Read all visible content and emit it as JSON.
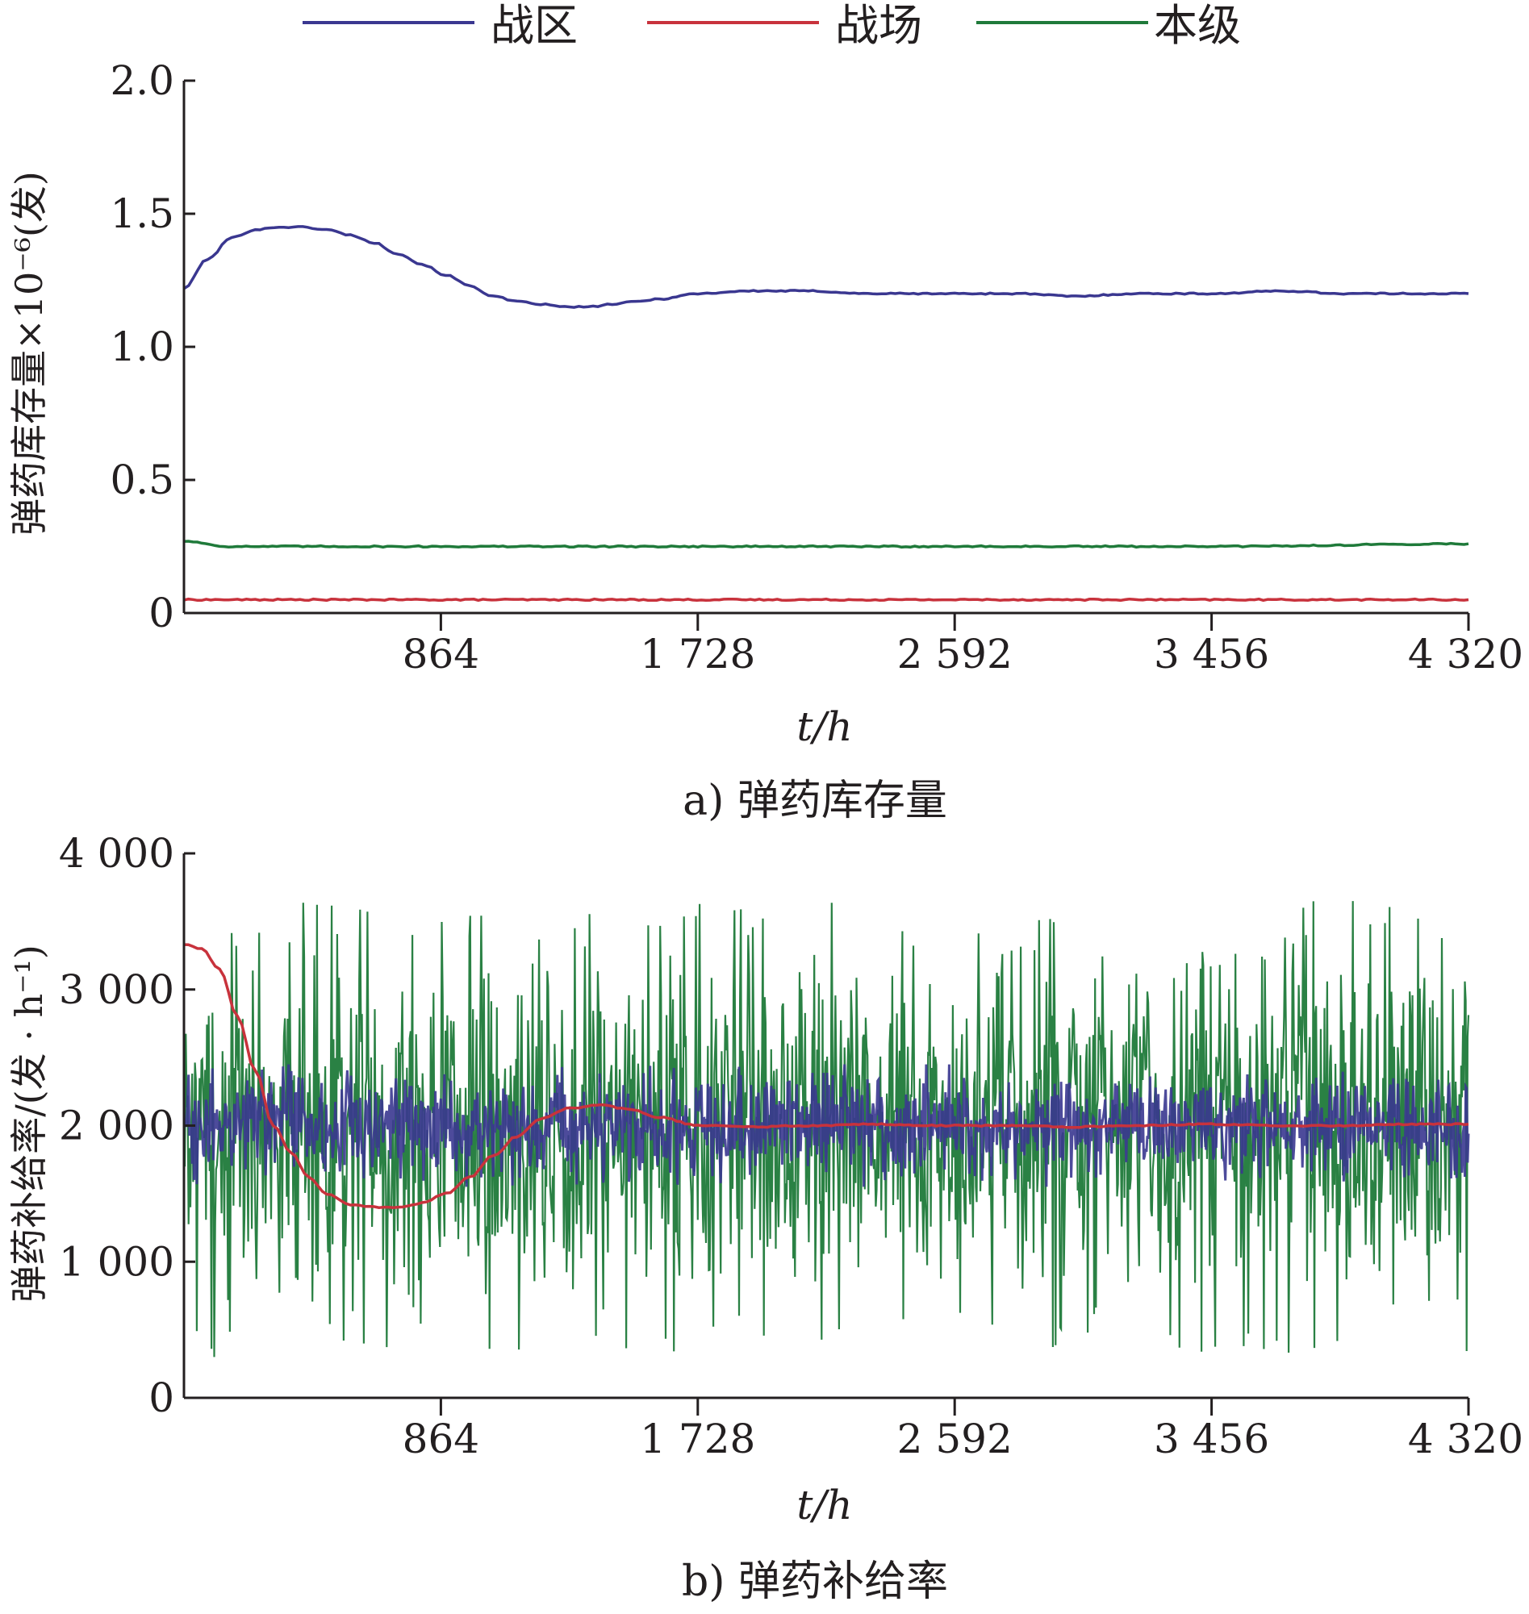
{
  "legend": [
    {
      "name": "战区",
      "color": "#3a3790"
    },
    {
      "name": "战场",
      "color": "#c8323c"
    },
    {
      "name": "本级",
      "color": "#1f7a3a"
    }
  ],
  "chart_data": [
    {
      "type": "line",
      "caption": "a) 弹药库存量",
      "ylabel": "弹药库存量×10⁻⁶(发)",
      "xlabel": "t/h",
      "xlim": [
        0,
        4320
      ],
      "ylim": [
        0,
        2.0
      ],
      "x_ticks": [
        864,
        1728,
        2592,
        3456,
        4320
      ],
      "x_tick_labels": [
        "864",
        "1 728",
        "2 592",
        "3 456",
        "4 320"
      ],
      "y_ticks": [
        0,
        0.5,
        1.0,
        1.5,
        2.0
      ],
      "y_tick_labels": [
        "0",
        "0.5",
        "1.0",
        "1.5",
        "2.0"
      ],
      "grid": false,
      "legend_position": "top",
      "series": [
        {
          "name": "战区",
          "color": "#3a3790",
          "x": [
            0,
            80,
            160,
            240,
            320,
            400,
            480,
            560,
            640,
            720,
            800,
            880,
            960,
            1040,
            1120,
            1200,
            1280,
            1360,
            1440,
            1520,
            1600,
            1728,
            1900,
            2100,
            2300,
            2592,
            2800,
            3000,
            3200,
            3456,
            3700,
            3900,
            4100,
            4320
          ],
          "y": [
            1.22,
            1.33,
            1.41,
            1.44,
            1.45,
            1.45,
            1.44,
            1.42,
            1.39,
            1.35,
            1.31,
            1.27,
            1.23,
            1.19,
            1.17,
            1.16,
            1.15,
            1.15,
            1.16,
            1.17,
            1.18,
            1.2,
            1.21,
            1.21,
            1.2,
            1.2,
            1.2,
            1.19,
            1.2,
            1.2,
            1.21,
            1.2,
            1.2,
            1.2
          ]
        },
        {
          "name": "战场",
          "color": "#c8323c",
          "x": [
            0,
            4320
          ],
          "y": [
            0.05,
            0.05
          ]
        },
        {
          "name": "本级",
          "color": "#1f7a3a",
          "x": [
            0,
            150,
            400,
            864,
            1728,
            2592,
            3456,
            4320
          ],
          "y": [
            0.27,
            0.25,
            0.25,
            0.25,
            0.25,
            0.25,
            0.25,
            0.26
          ]
        }
      ]
    },
    {
      "type": "line",
      "caption": "b) 弹药补给率",
      "ylabel": "弹药补给率/(发 · h⁻¹)",
      "xlabel": "t/h",
      "xlim": [
        0,
        4320
      ],
      "ylim": [
        0,
        4000
      ],
      "x_ticks": [
        864,
        1728,
        2592,
        3456,
        4320
      ],
      "x_tick_labels": [
        "864",
        "1 728",
        "2 592",
        "3 456",
        "4 320"
      ],
      "y_ticks": [
        0,
        1000,
        2000,
        3000,
        4000
      ],
      "y_tick_labels": [
        "0",
        "1 000",
        "2 000",
        "3 000",
        "4 000"
      ],
      "grid": false,
      "series": [
        {
          "name": "本级",
          "color": "#1f7a3a",
          "mean": 2000,
          "range": [
            300,
            3650
          ]
        },
        {
          "name": "战区",
          "color": "#3a3790",
          "mean": 2000,
          "range": [
            1550,
            2450
          ]
        },
        {
          "name": "战场",
          "color": "#c8323c",
          "x": [
            0,
            60,
            120,
            180,
            240,
            300,
            360,
            420,
            480,
            560,
            640,
            720,
            800,
            880,
            960,
            1040,
            1120,
            1200,
            1300,
            1400,
            1500,
            1600,
            1728,
            1900,
            2100,
            2300,
            2592,
            2800,
            3000,
            3200,
            3456,
            3700,
            3900,
            4100,
            4320
          ],
          "y": [
            3330,
            3300,
            3150,
            2800,
            2400,
            2000,
            1800,
            1620,
            1500,
            1420,
            1400,
            1400,
            1430,
            1500,
            1620,
            1780,
            1920,
            2050,
            2130,
            2150,
            2120,
            2060,
            2000,
            1990,
            2000,
            2010,
            2000,
            2000,
            1990,
            2000,
            2010,
            2000,
            2000,
            2010,
            2010
          ]
        }
      ]
    }
  ]
}
